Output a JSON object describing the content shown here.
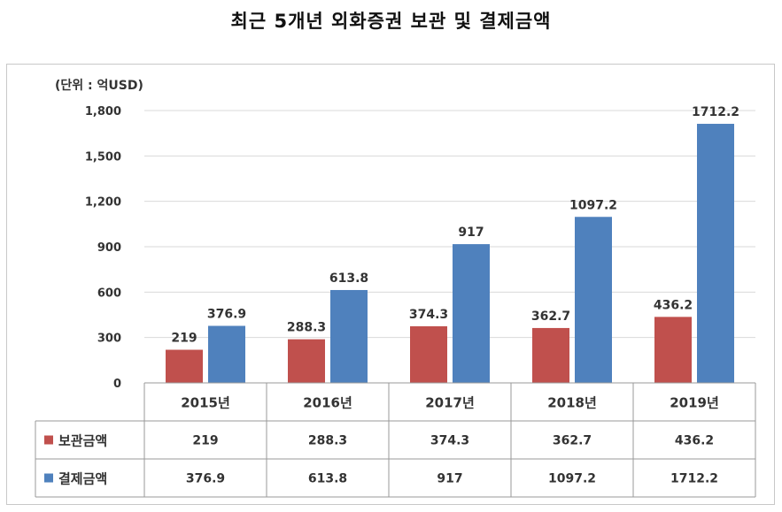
{
  "chart_data": {
    "type": "bar",
    "title": "최근 5개년 외화증권 보관 및 결제금액",
    "unit_label": "(단위 : 억USD)",
    "categories": [
      "2015년",
      "2016년",
      "2017년",
      "2018년",
      "2019년"
    ],
    "series": [
      {
        "name": "보관금액",
        "color": "#c0504d",
        "values": [
          219,
          288.3,
          374.3,
          362.7,
          436.2
        ],
        "labels": [
          "219",
          "288.3",
          "374.3",
          "362.7",
          "436.2"
        ]
      },
      {
        "name": "결제금액",
        "color": "#4f81bd",
        "values": [
          376.9,
          613.8,
          917,
          1097.2,
          1712.2
        ],
        "labels": [
          "376.9",
          "613.8",
          "917",
          "1097.2",
          "1712.2"
        ]
      }
    ],
    "y_ticks": [
      0,
      300,
      600,
      900,
      1200,
      1500,
      1800
    ],
    "y_tick_labels": [
      "0",
      "300",
      "600",
      "900",
      "1,200",
      "1,500",
      "1,800"
    ],
    "ylim": [
      0,
      1800
    ],
    "grid": true,
    "legend": "data table below chart"
  }
}
